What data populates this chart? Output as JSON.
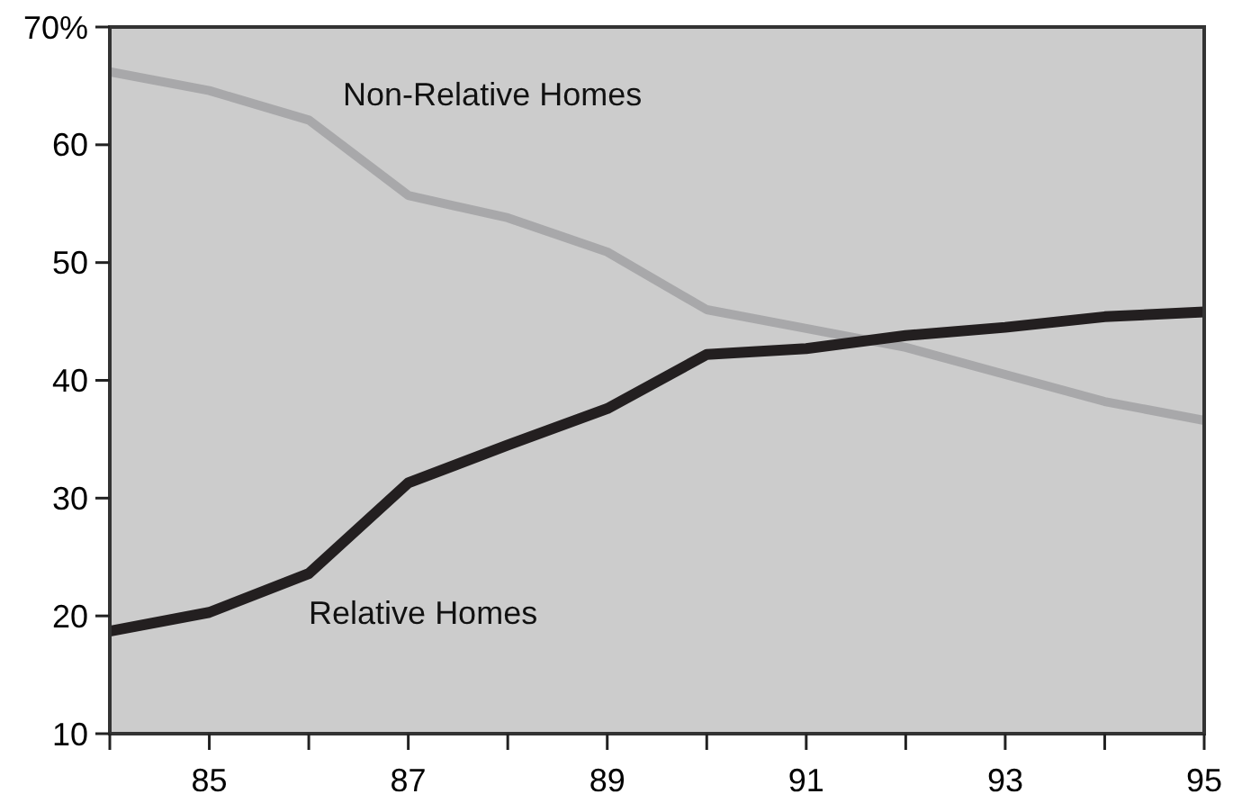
{
  "chart_data": {
    "type": "line",
    "x": [
      84,
      85,
      86,
      87,
      88,
      89,
      90,
      91,
      92,
      93,
      94,
      95
    ],
    "series": [
      {
        "name": "Non-Relative Homes",
        "color": "#a8a8aa",
        "values": [
          66.2,
          64.6,
          62.1,
          55.7,
          53.8,
          50.9,
          46.0,
          44.4,
          42.8,
          40.5,
          38.2,
          36.6
        ]
      },
      {
        "name": "Relative Homes",
        "color": "#231f20",
        "values": [
          18.7,
          20.3,
          23.6,
          31.3,
          34.5,
          37.6,
          42.2,
          42.7,
          43.8,
          44.5,
          45.4,
          45.8
        ]
      }
    ],
    "xlim": [
      84,
      95
    ],
    "xticks": [
      {
        "value": 84,
        "label": null
      },
      85,
      {
        "value": 86,
        "label": null
      },
      87,
      {
        "value": 88,
        "label": null
      },
      89,
      {
        "value": 90,
        "label": null
      },
      91,
      {
        "value": 92,
        "label": null
      },
      93,
      {
        "value": 94,
        "label": null
      },
      95
    ],
    "ylim": [
      10,
      70
    ],
    "yticks": [
      10,
      20,
      30,
      40,
      50,
      60,
      {
        "value": 70,
        "label": "70%"
      }
    ],
    "grid": false,
    "marker": "none",
    "line_style": "solid"
  }
}
